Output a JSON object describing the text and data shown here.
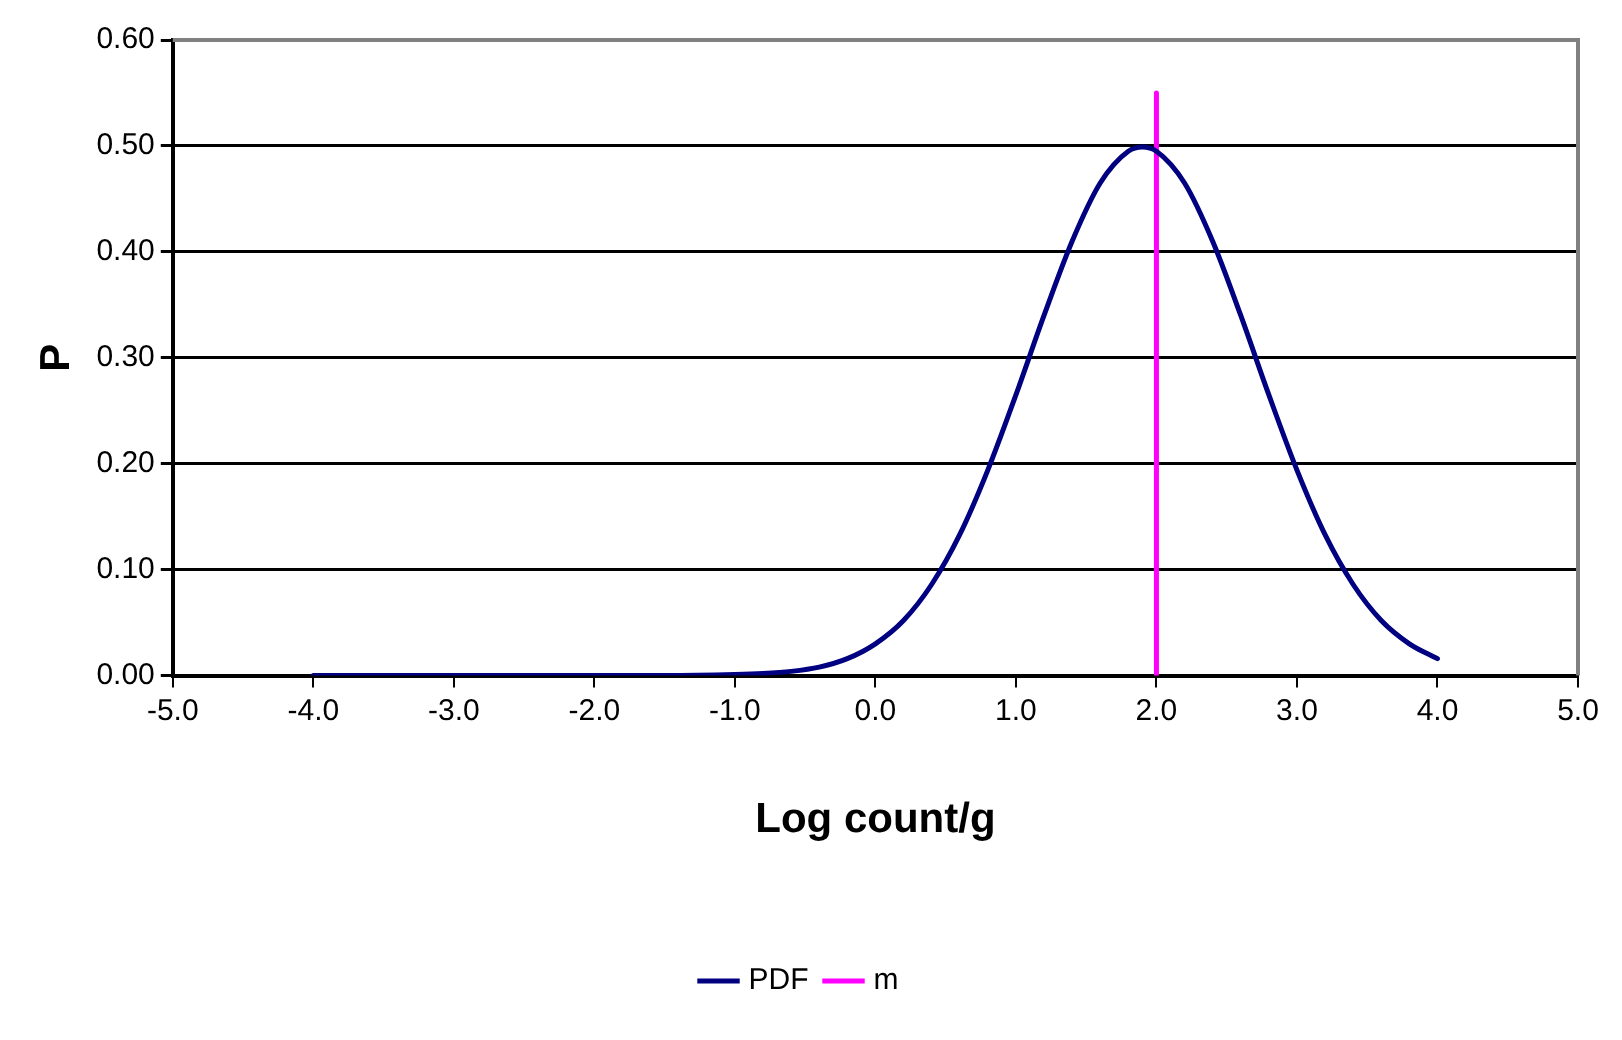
{
  "chart_data": {
    "type": "line",
    "xlabel": "Log count/g",
    "ylabel": "P",
    "xlim": [
      -5,
      5
    ],
    "ylim": [
      0,
      0.6
    ],
    "xticks": [
      {
        "value": -5,
        "label": "-5.0"
      },
      {
        "value": -4,
        "label": "-4.0"
      },
      {
        "value": -3,
        "label": "-3.0"
      },
      {
        "value": -2,
        "label": "-2.0"
      },
      {
        "value": -1,
        "label": "-1.0"
      },
      {
        "value": 0,
        "label": "0.0"
      },
      {
        "value": 1,
        "label": "1.0"
      },
      {
        "value": 2,
        "label": "2.0"
      },
      {
        "value": 3,
        "label": "3.0"
      },
      {
        "value": 4,
        "label": "4.0"
      },
      {
        "value": 5,
        "label": "5.0"
      }
    ],
    "yticks": [
      {
        "value": 0,
        "label": "0.00"
      },
      {
        "value": 0.1,
        "label": "0.10"
      },
      {
        "value": 0.2,
        "label": "0.20"
      },
      {
        "value": 0.3,
        "label": "0.30"
      },
      {
        "value": 0.4,
        "label": "0.40"
      },
      {
        "value": 0.5,
        "label": "0.50"
      },
      {
        "value": 0.6,
        "label": "0.60"
      }
    ],
    "grid": "y",
    "legend": "bottom",
    "marker": "none",
    "line_style": "solid",
    "series": [
      {
        "name": "PDF",
        "color": "#000080",
        "x": [
          -4,
          -3,
          -2,
          -1.5,
          -1,
          -0.8,
          -0.6,
          -0.4,
          -0.2,
          0,
          0.2,
          0.4,
          0.6,
          0.8,
          1,
          1.2,
          1.4,
          1.6,
          1.8,
          1.9,
          2,
          2.2,
          2.4,
          2.6,
          2.8,
          3,
          3.2,
          3.4,
          3.6,
          3.8,
          4
        ],
        "values": [
          0,
          0,
          0,
          0,
          0.001,
          0.002,
          0.004,
          0.008,
          0.016,
          0.03,
          0.052,
          0.086,
          0.133,
          0.194,
          0.265,
          0.34,
          0.41,
          0.465,
          0.495,
          0.499,
          0.495,
          0.465,
          0.41,
          0.34,
          0.265,
          0.194,
          0.133,
          0.086,
          0.052,
          0.03,
          0.016
        ]
      },
      {
        "name": "m",
        "color": "#ff00ff",
        "x": [
          2,
          2
        ],
        "values": [
          0,
          0.55
        ]
      }
    ]
  }
}
